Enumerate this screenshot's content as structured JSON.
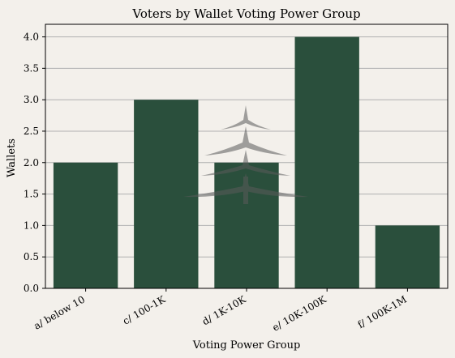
{
  "chart_data": {
    "type": "bar",
    "title": "Voters by Wallet Voting Power Group",
    "xlabel": "Voting Power Group",
    "ylabel": "Wallets",
    "categories": [
      "a/ below 10",
      "c/ 100-1K",
      "d/ 1K-10K",
      "e/ 10K-100K",
      "f/ 100K-1M"
    ],
    "values": [
      2,
      3,
      2,
      4,
      1
    ],
    "ylim": [
      0,
      4.2
    ],
    "yticks": [
      "0.0",
      "0.5",
      "1.0",
      "1.5",
      "2.0",
      "2.5",
      "3.0",
      "3.5",
      "4.0"
    ],
    "grid": "horizontal",
    "legend": "none",
    "colors": {
      "bar": "#2a4f3c",
      "grid": "#b0b0b0",
      "background": "#f3f0eb",
      "watermark": "#5a5a5a"
    }
  }
}
